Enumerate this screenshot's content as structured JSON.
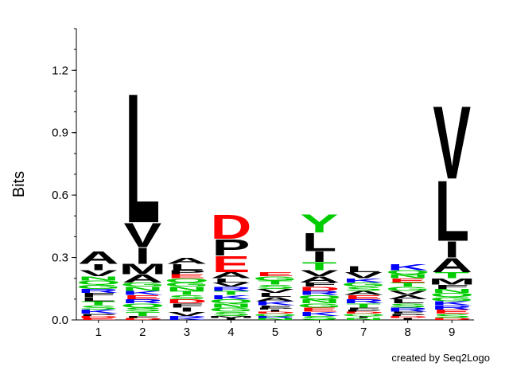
{
  "chart_data": {
    "type": "sequence-logo",
    "ylabel": "Bits",
    "xlabel": "",
    "ylim": [
      0,
      1.4
    ],
    "yticks": [
      "0.0",
      "0.3",
      "0.6",
      "0.9",
      "1.2"
    ],
    "ytick_values": [
      0.0,
      0.3,
      0.6,
      0.9,
      1.2
    ],
    "positions": [
      "1",
      "2",
      "3",
      "4",
      "5",
      "6",
      "7",
      "8",
      "9"
    ],
    "credit": "created by Seq2Logo",
    "colors": {
      "hydrophobic": "#000000",
      "polar": "#00cc00",
      "basic": "#0000ff",
      "acidic": "#ff0000",
      "other": "#800080"
    },
    "stacks": [
      [
        {
          "l": "A",
          "v": 0.06
        },
        {
          "l": "K",
          "v": 0.02
        },
        {
          "l": "V",
          "v": 0.03
        },
        {
          "l": "S",
          "v": 0.02
        },
        {
          "l": "T",
          "v": 0.02
        },
        {
          "l": "I",
          "v": 0.03
        },
        {
          "l": "L",
          "v": 0.02
        },
        {
          "l": "F",
          "v": 0.02
        },
        {
          "l": "R",
          "v": 0.02
        },
        {
          "l": "G",
          "v": 0.02
        },
        {
          "l": "Q",
          "v": 0.02
        },
        {
          "l": "N",
          "v": 0.02
        },
        {
          "l": "E",
          "v": 0.01
        },
        {
          "l": "D",
          "v": 0.01
        },
        {
          "l": "P",
          "v": 0.01
        }
      ],
      [
        {
          "l": "L",
          "v": 0.64
        },
        {
          "l": "I",
          "v": 0.08
        },
        {
          "l": "V",
          "v": 0.12
        },
        {
          "l": "A",
          "v": 0.04
        },
        {
          "l": "M",
          "v": 0.05
        },
        {
          "l": "T",
          "v": 0.02
        },
        {
          "l": "S",
          "v": 0.02
        },
        {
          "l": "Q",
          "v": 0.02
        },
        {
          "l": "R",
          "v": 0.02
        },
        {
          "l": "E",
          "v": 0.02
        },
        {
          "l": "K",
          "v": 0.02
        },
        {
          "l": "N",
          "v": 0.02
        },
        {
          "l": "G",
          "v": 0.02
        },
        {
          "l": "D",
          "v": 0.01
        },
        {
          "l": "F",
          "v": 0.01
        }
      ],
      [
        {
          "l": "L",
          "v": 0.03
        },
        {
          "l": "A",
          "v": 0.03
        },
        {
          "l": "V",
          "v": 0.02
        },
        {
          "l": "I",
          "v": 0.02
        },
        {
          "l": "F",
          "v": 0.02
        },
        {
          "l": "D",
          "v": 0.02
        },
        {
          "l": "S",
          "v": 0.02
        },
        {
          "l": "T",
          "v": 0.02
        },
        {
          "l": "N",
          "v": 0.02
        },
        {
          "l": "G",
          "v": 0.02
        },
        {
          "l": "Q",
          "v": 0.02
        },
        {
          "l": "K",
          "v": 0.01
        },
        {
          "l": "R",
          "v": 0.01
        },
        {
          "l": "E",
          "v": 0.02
        },
        {
          "l": "P",
          "v": 0.02
        }
      ],
      [
        {
          "l": "D",
          "v": 0.12
        },
        {
          "l": "E",
          "v": 0.08
        },
        {
          "l": "P",
          "v": 0.08
        },
        {
          "l": "S",
          "v": 0.02
        },
        {
          "l": "G",
          "v": 0.02
        },
        {
          "l": "N",
          "v": 0.02
        },
        {
          "l": "Q",
          "v": 0.02
        },
        {
          "l": "K",
          "v": 0.02
        },
        {
          "l": "A",
          "v": 0.03
        },
        {
          "l": "T",
          "v": 0.02
        },
        {
          "l": "R",
          "v": 0.02
        },
        {
          "l": "V",
          "v": 0.02
        },
        {
          "l": "L",
          "v": 0.02
        },
        {
          "l": "I",
          "v": 0.01
        },
        {
          "l": "M",
          "v": 0.01
        }
      ],
      [
        {
          "l": "K",
          "v": 0.02
        },
        {
          "l": "A",
          "v": 0.02
        },
        {
          "l": "L",
          "v": 0.02
        },
        {
          "l": "V",
          "v": 0.02
        },
        {
          "l": "S",
          "v": 0.02
        },
        {
          "l": "T",
          "v": 0.02
        },
        {
          "l": "G",
          "v": 0.02
        },
        {
          "l": "E",
          "v": 0.02
        },
        {
          "l": "N",
          "v": 0.01
        },
        {
          "l": "R",
          "v": 0.01
        },
        {
          "l": "Q",
          "v": 0.01
        },
        {
          "l": "D",
          "v": 0.01
        },
        {
          "l": "I",
          "v": 0.01
        },
        {
          "l": "P",
          "v": 0.01
        },
        {
          "l": "F",
          "v": 0.01
        }
      ],
      [
        {
          "l": "L",
          "v": 0.09
        },
        {
          "l": "Y",
          "v": 0.09
        },
        {
          "l": "I",
          "v": 0.05
        },
        {
          "l": "T",
          "v": 0.04
        },
        {
          "l": "A",
          "v": 0.03
        },
        {
          "l": "V",
          "v": 0.03
        },
        {
          "l": "S",
          "v": 0.02
        },
        {
          "l": "K",
          "v": 0.02
        },
        {
          "l": "E",
          "v": 0.02
        },
        {
          "l": "G",
          "v": 0.02
        },
        {
          "l": "N",
          "v": 0.02
        },
        {
          "l": "Q",
          "v": 0.02
        },
        {
          "l": "R",
          "v": 0.02
        },
        {
          "l": "D",
          "v": 0.02
        },
        {
          "l": "F",
          "v": 0.02
        }
      ],
      [
        {
          "l": "V",
          "v": 0.03
        },
        {
          "l": "L",
          "v": 0.03
        },
        {
          "l": "T",
          "v": 0.02
        },
        {
          "l": "R",
          "v": 0.02
        },
        {
          "l": "E",
          "v": 0.02
        },
        {
          "l": "A",
          "v": 0.02
        },
        {
          "l": "S",
          "v": 0.02
        },
        {
          "l": "G",
          "v": 0.02
        },
        {
          "l": "K",
          "v": 0.02
        },
        {
          "l": "N",
          "v": 0.01
        },
        {
          "l": "I",
          "v": 0.01
        },
        {
          "l": "Q",
          "v": 0.01
        },
        {
          "l": "D",
          "v": 0.01
        },
        {
          "l": "P",
          "v": 0.01
        },
        {
          "l": "F",
          "v": 0.01
        }
      ],
      [
        {
          "l": "K",
          "v": 0.03
        },
        {
          "l": "R",
          "v": 0.02
        },
        {
          "l": "S",
          "v": 0.02
        },
        {
          "l": "L",
          "v": 0.02
        },
        {
          "l": "A",
          "v": 0.02
        },
        {
          "l": "V",
          "v": 0.02
        },
        {
          "l": "G",
          "v": 0.02
        },
        {
          "l": "T",
          "v": 0.02
        },
        {
          "l": "E",
          "v": 0.02
        },
        {
          "l": "N",
          "v": 0.02
        },
        {
          "l": "Q",
          "v": 0.02
        },
        {
          "l": "I",
          "v": 0.01
        },
        {
          "l": "D",
          "v": 0.01
        },
        {
          "l": "P",
          "v": 0.01
        },
        {
          "l": "F",
          "v": 0.01
        }
      ],
      [
        {
          "l": "L",
          "v": 0.3
        },
        {
          "l": "V",
          "v": 0.36
        },
        {
          "l": "I",
          "v": 0.08
        },
        {
          "l": "A",
          "v": 0.07
        },
        {
          "l": "M",
          "v": 0.03
        },
        {
          "l": "T",
          "v": 0.03
        },
        {
          "l": "S",
          "v": 0.02
        },
        {
          "l": "E",
          "v": 0.02
        },
        {
          "l": "R",
          "v": 0.02
        },
        {
          "l": "K",
          "v": 0.02
        },
        {
          "l": "G",
          "v": 0.02
        },
        {
          "l": "Q",
          "v": 0.02
        },
        {
          "l": "N",
          "v": 0.02
        },
        {
          "l": "F",
          "v": 0.02
        },
        {
          "l": "D",
          "v": 0.01
        }
      ]
    ]
  }
}
